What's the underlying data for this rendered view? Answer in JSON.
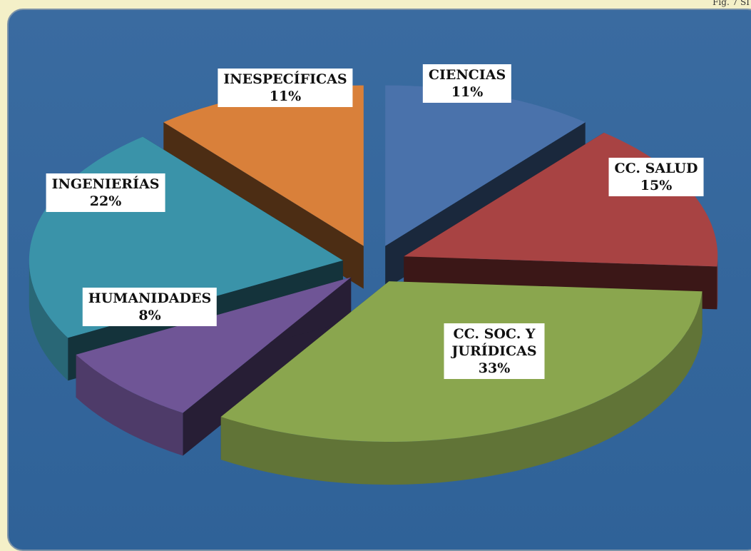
{
  "chart_data": {
    "type": "pie",
    "caption": "Fig. 7 SI",
    "categories": [
      "CIENCIAS",
      "CC. SALUD",
      "CC. SOC. Y JURÍDICAS",
      "HUMANIDADES",
      "INGENIERÍAS",
      "INESPECÍFICAS"
    ],
    "values": [
      11,
      15,
      33,
      8,
      22,
      11
    ],
    "value_labels": [
      "11%",
      "15%",
      "33%",
      "8%",
      "22%",
      "11%"
    ],
    "colors": [
      "#4a72ab",
      "#a84343",
      "#8aa64e",
      "#6f5596",
      "#3a93a9",
      "#d9803a"
    ]
  }
}
